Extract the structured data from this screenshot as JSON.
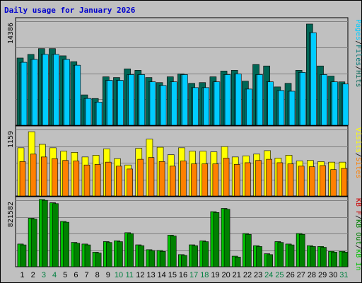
{
  "colors": {
    "background": "#c0c0c0",
    "frame": "#000000",
    "title": "#0000cc",
    "pages": "#00ccff",
    "files": "#007777",
    "hits": "#006655",
    "visits": "#ffff00",
    "sites": "#ff8000",
    "kb_in": "#00c000",
    "kb_out": "#008000",
    "kb_f": "#cc0000",
    "weekend_day": "#008040",
    "weekday_day": "#000000"
  },
  "chart_data": {
    "type": "bar",
    "title": "Daily usage for January 2026",
    "categories": [
      "1",
      "2",
      "3",
      "4",
      "5",
      "6",
      "7",
      "8",
      "9",
      "10",
      "11",
      "12",
      "13",
      "14",
      "15",
      "16",
      "17",
      "18",
      "19",
      "20",
      "21",
      "22",
      "23",
      "24",
      "25",
      "26",
      "27",
      "28",
      "29",
      "30",
      "31"
    ],
    "weekend_days": [
      "3",
      "4",
      "10",
      "11",
      "17",
      "18",
      "24",
      "25",
      "31"
    ],
    "panels": [
      {
        "name": "hits-files-pages",
        "max_label": "14386",
        "ylim": [
          0,
          14386
        ],
        "legend": [
          "Pages",
          "/",
          "Files",
          "/",
          "Hits"
        ],
        "series": [
          {
            "name": "Hits",
            "values": [
              9300,
              9800,
              10600,
              10600,
              9600,
              8800,
              4200,
              3700,
              6700,
              6600,
              7800,
              7600,
              6600,
              5900,
              6700,
              7100,
              5800,
              5900,
              6700,
              7500,
              7600,
              6100,
              8400,
              8200,
              5300,
              5800,
              7600,
              14000,
              8200,
              6800,
              6000
            ]
          },
          {
            "name": "Files",
            "values": [
              8700,
              9100,
              9800,
              9800,
              9100,
              8300,
              3700,
              3200,
              6200,
              6200,
              7000,
              7000,
              6000,
              5500,
              6000,
              7000,
              5200,
              5200,
              6000,
              7000,
              7100,
              5000,
              7000,
              6000,
              4800,
              4700,
              7300,
              12800,
              7000,
              6000,
              5700
            ]
          },
          {
            "name": "Pages",
            "values": [
              8700,
              9100,
              9800,
              9800,
              9100,
              8300,
              3700,
              3200,
              6200,
              6200,
              7000,
              7000,
              6000,
              5500,
              6000,
              7000,
              5200,
              5200,
              6000,
              7000,
              7100,
              5000,
              7000,
              6000,
              4800,
              4700,
              7300,
              12800,
              7000,
              6000,
              5700
            ]
          }
        ]
      },
      {
        "name": "visits-sites",
        "max_label": "1159",
        "ylim": [
          0,
          1159
        ],
        "legend": [
          "Visits",
          "/",
          "Sites"
        ],
        "series": [
          {
            "name": "Visits",
            "values": [
              840,
              1120,
              900,
              840,
              780,
              760,
              680,
              710,
              820,
              650,
              540,
              830,
              990,
              850,
              720,
              840,
              780,
              780,
              770,
              860,
              680,
              700,
              730,
              790,
              660,
              710,
              610,
              620,
              600,
              590,
              590
            ]
          },
          {
            "name": "Sites",
            "values": [
              600,
              730,
              680,
              650,
              620,
              610,
              540,
              550,
              590,
              520,
              470,
              640,
              670,
              600,
              520,
              610,
              560,
              560,
              560,
              660,
              550,
              580,
              620,
              640,
              580,
              560,
              520,
              510,
              530,
              460,
              480
            ]
          }
        ]
      },
      {
        "name": "kbytes",
        "max_label": "821582",
        "ylim": [
          0,
          821582
        ],
        "legend": [
          "KB F",
          "/",
          "KB Out",
          "/",
          "KB In"
        ],
        "series": [
          {
            "name": "KB F",
            "values": [
              280000,
              600000,
              830000,
              790000,
              560000,
              300000,
              280000,
              180000,
              310000,
              320000,
              420000,
              270000,
              210000,
              200000,
              390000,
              150000,
              270000,
              320000,
              680000,
              720000,
              130000,
              410000,
              260000,
              160000,
              310000,
              280000,
              410000,
              260000,
              250000,
              190000,
              190000
            ]
          },
          {
            "name": "KB In",
            "values": [
              280000,
              600000,
              830000,
              790000,
              560000,
              300000,
              280000,
              180000,
              310000,
              320000,
              420000,
              270000,
              210000,
              200000,
              390000,
              150000,
              270000,
              320000,
              680000,
              720000,
              130000,
              410000,
              260000,
              160000,
              310000,
              280000,
              410000,
              260000,
              250000,
              190000,
              190000
            ]
          },
          {
            "name": "KB Out",
            "values": [
              270000,
              590000,
              820000,
              780000,
              550000,
              290000,
              270000,
              170000,
              300000,
              310000,
              410000,
              260000,
              200000,
              190000,
              380000,
              140000,
              260000,
              310000,
              670000,
              710000,
              120000,
              400000,
              250000,
              150000,
              300000,
              270000,
              400000,
              250000,
              240000,
              180000,
              180000
            ]
          }
        ]
      }
    ]
  }
}
